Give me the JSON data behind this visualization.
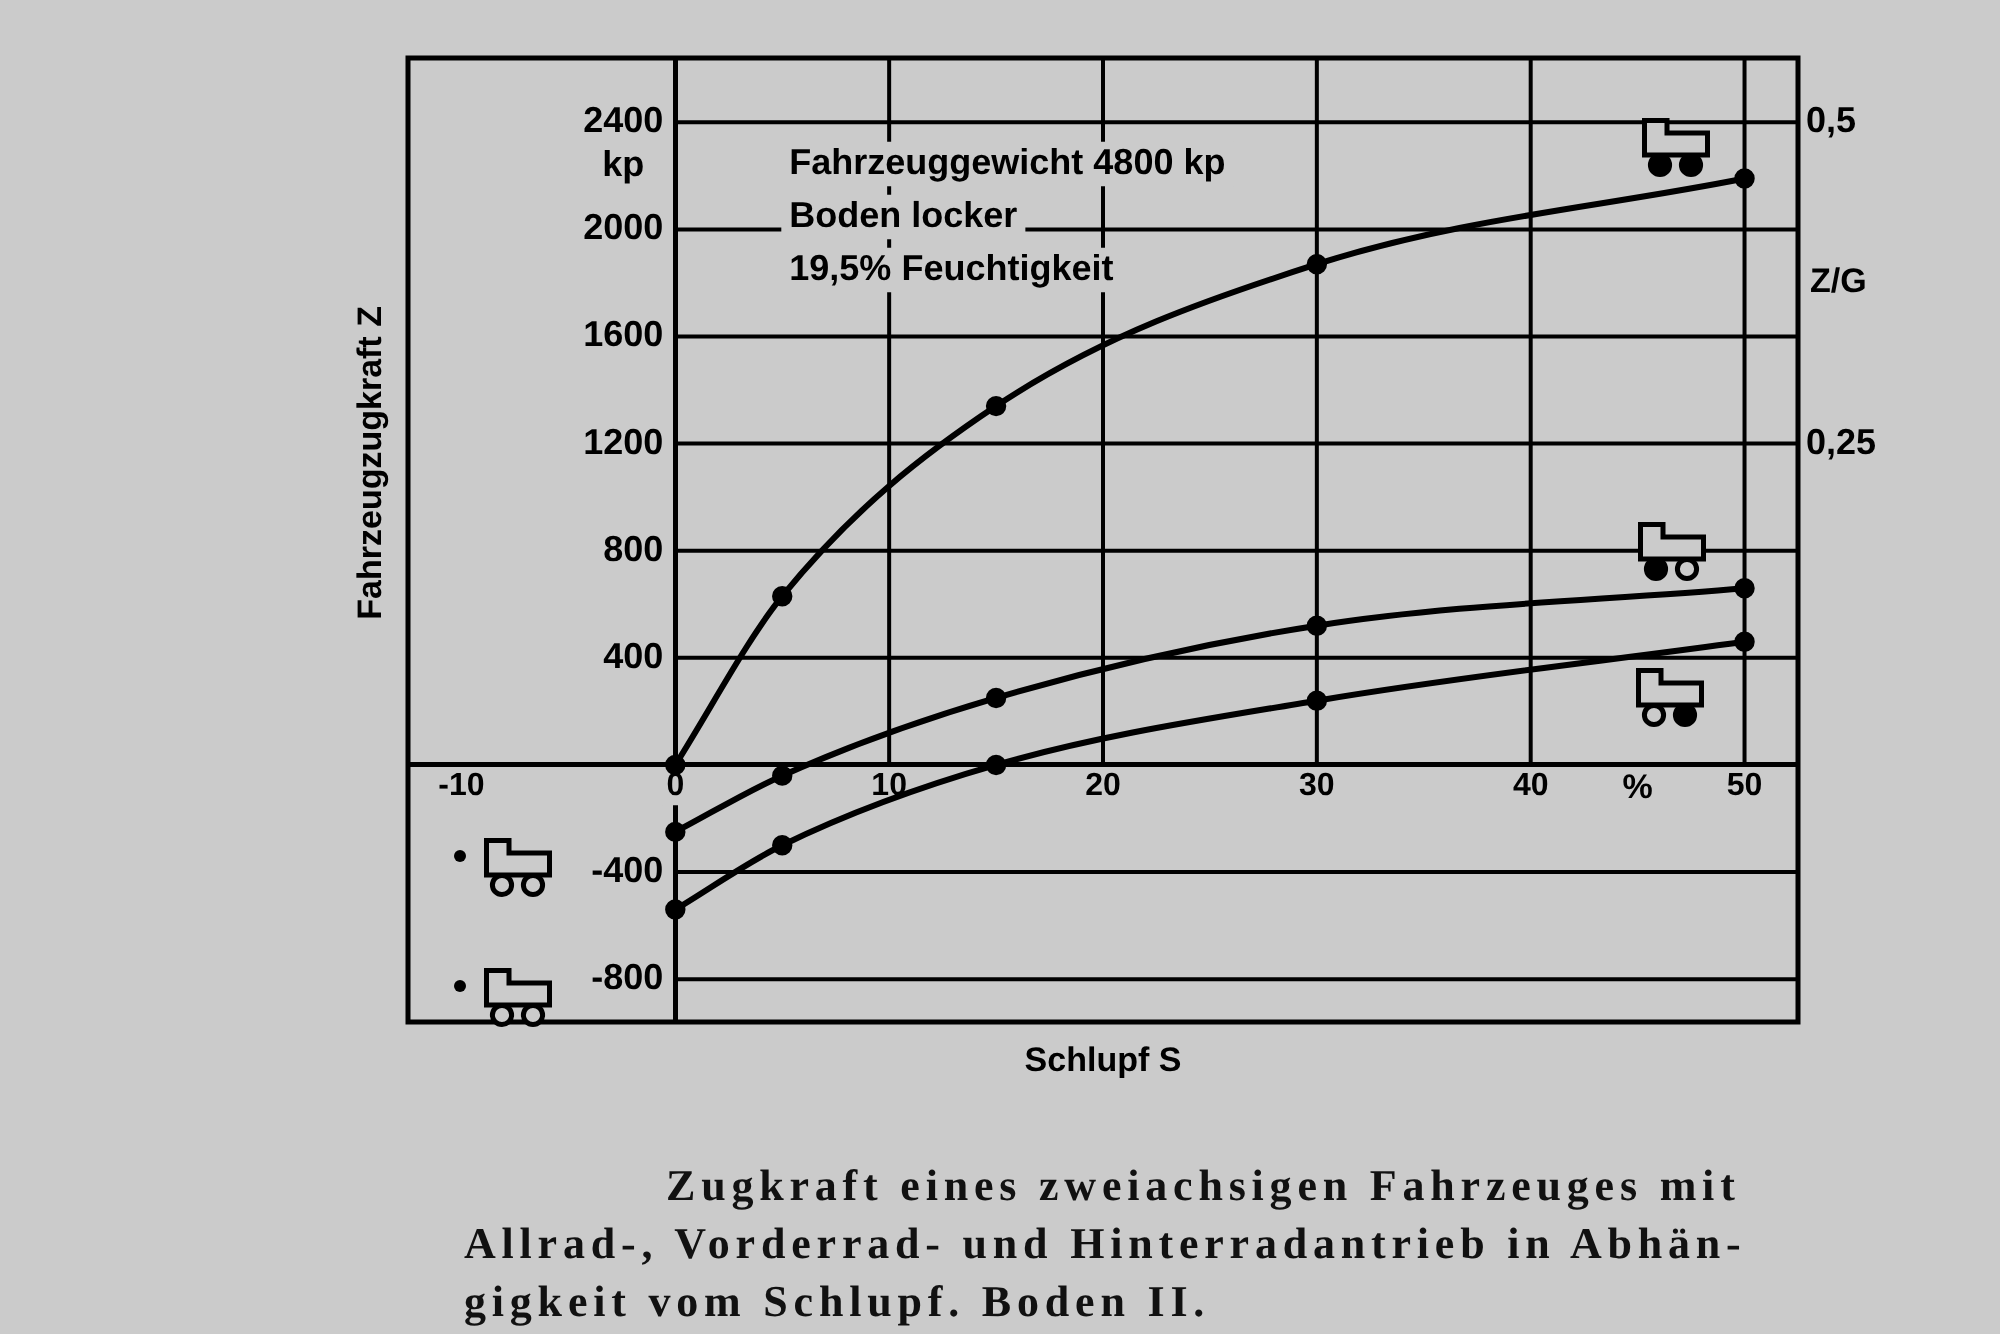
{
  "chart_data": {
    "type": "line",
    "title": "Zugkraft eines zweiachsigen Fahrzeuges mit\nAllrad-, Vorderrad- und Hinterradantrieb in Abhän-\ngigkeit vom Schlupf. Boden II.",
    "xlabel": "Schlupf S",
    "ylabel": "Fahrzeugzugkraft Z",
    "y2label": "Z/G",
    "annotations": [
      "Fahrzeuggewicht 4800 kp",
      "Boden locker",
      "19,5% Feuchtigkeit",
      "kp",
      "%"
    ],
    "x": [
      0,
      5,
      15,
      30,
      50
    ],
    "series": [
      {
        "color": "#000000",
        "values": [
          0,
          630,
          1340,
          1870,
          2190
        ]
      },
      {
        "color": "#000000",
        "values": [
          -250,
          -40,
          250,
          520,
          660
        ]
      },
      {
        "color": "#000000",
        "values": [
          -540,
          -300,
          0,
          240,
          460
        ]
      }
    ],
    "xlim": [
      -12.5,
      52.5
    ],
    "xticks": [
      -10,
      0,
      10,
      20,
      30,
      40,
      50
    ],
    "ylim": [
      -960,
      2640
    ],
    "yticks": [
      -800,
      -400,
      400,
      800,
      1200,
      1600,
      2000,
      2400
    ],
    "y2lim": [
      -0.2,
      0.55
    ],
    "y2ticks": [
      {
        "value": 0.25,
        "label": "0,25"
      },
      {
        "value": 0.5,
        "label": "0,5"
      }
    ],
    "grid": true,
    "legend": false,
    "marker": "circle",
    "line_style": "solid"
  }
}
